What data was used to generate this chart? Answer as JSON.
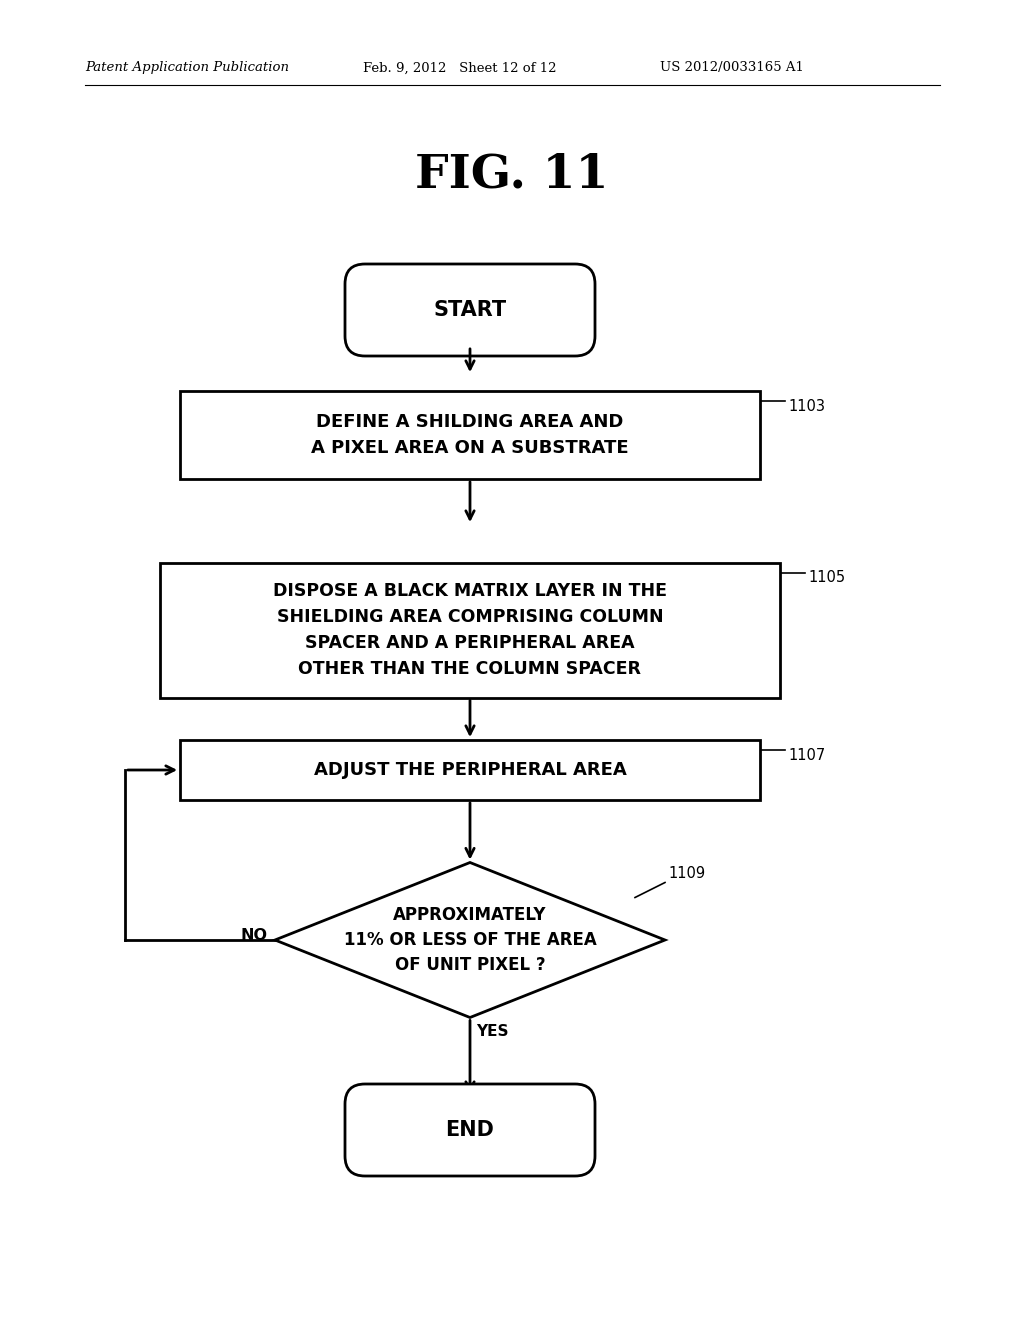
{
  "bg_color": "#ffffff",
  "header_left": "Patent Application Publication",
  "header_mid": "Feb. 9, 2012   Sheet 12 of 12",
  "header_right": "US 2012/0033165 A1",
  "fig_title": "FIG. 11",
  "start_text": "START",
  "end_text": "END",
  "box1_text": "DEFINE A SHILDING AREA AND\nA PIXEL AREA ON A SUBSTRATE",
  "box1_label": "1103",
  "box2_text": "DISPOSE A BLACK MATRIX LAYER IN THE\nSHIELDING AREA COMPRISING COLUMN\nSPACER AND A PERIPHERAL AREA\nOTHER THAN THE COLUMN SPACER",
  "box2_label": "1105",
  "box3_text": "ADJUST THE PERIPHERAL AREA",
  "box3_label": "1107",
  "diamond_text": "APPROXIMATELY\n11% OR LESS OF THE AREA\nOF UNIT PIXEL ?",
  "diamond_label": "1109",
  "yes_label": "YES",
  "no_label": "NO",
  "line_color": "#000000",
  "text_color": "#000000",
  "lw": 2.0
}
